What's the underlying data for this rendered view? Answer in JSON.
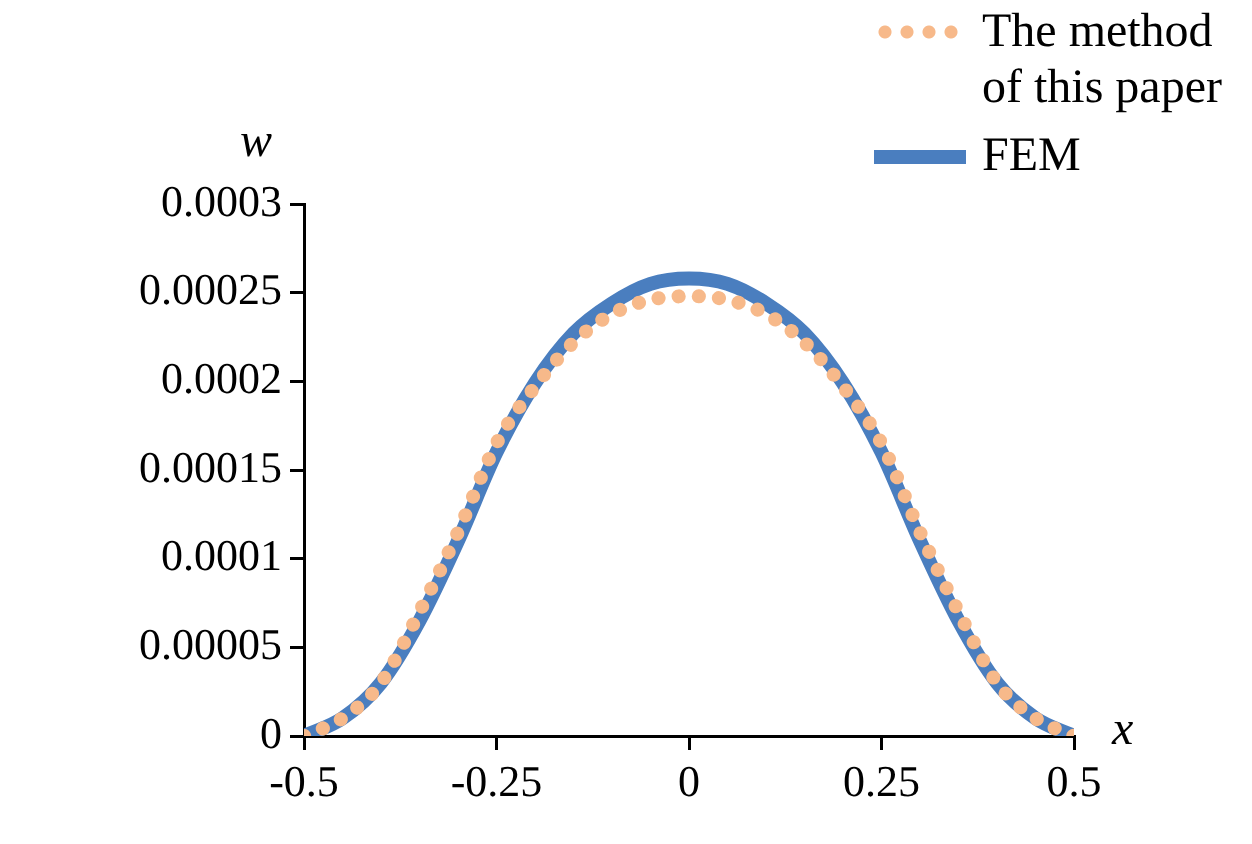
{
  "chart_data": {
    "type": "line",
    "xlabel": "x",
    "ylabel": "w",
    "x": [
      -0.5,
      -0.45,
      -0.4,
      -0.35,
      -0.3,
      -0.25,
      -0.2,
      -0.15,
      -0.1,
      -0.05,
      0,
      0.05,
      0.1,
      0.15,
      0.2,
      0.25,
      0.3,
      0.35,
      0.4,
      0.45,
      0.5
    ],
    "series": [
      {
        "name": "The method of this paper",
        "color": "#f7b98a",
        "line_style": "dotted",
        "values": [
          0,
          1e-05,
          3e-05,
          7e-05,
          0.000115,
          0.000165,
          0.000197,
          0.000222,
          0.000238,
          0.000246,
          0.000248,
          0.000246,
          0.000238,
          0.000222,
          0.000197,
          0.000165,
          0.000115,
          7e-05,
          3e-05,
          1e-05,
          0
        ]
      },
      {
        "name": "FEM",
        "color": "#4a7ebf",
        "line_style": "solid",
        "values": [
          0,
          1e-05,
          3e-05,
          6.5e-05,
          0.00011,
          0.00016,
          0.000199,
          0.000227,
          0.000244,
          0.000255,
          0.000258,
          0.000255,
          0.000244,
          0.000227,
          0.000199,
          0.00016,
          0.00011,
          6.5e-05,
          3e-05,
          1e-05,
          0
        ]
      }
    ],
    "xlim": [
      -0.5,
      0.5
    ],
    "xticks": [
      -0.5,
      -0.25,
      0,
      0.25,
      0.5
    ],
    "ylim": [
      0,
      0.0003
    ],
    "yticks": [
      0,
      {
        "value": 5e-05,
        "label": "0.00005"
      },
      0.0001,
      0.00015,
      0.0002,
      0.00025,
      0.0003
    ],
    "grid": false,
    "legend": "top right",
    "marker": "none"
  }
}
